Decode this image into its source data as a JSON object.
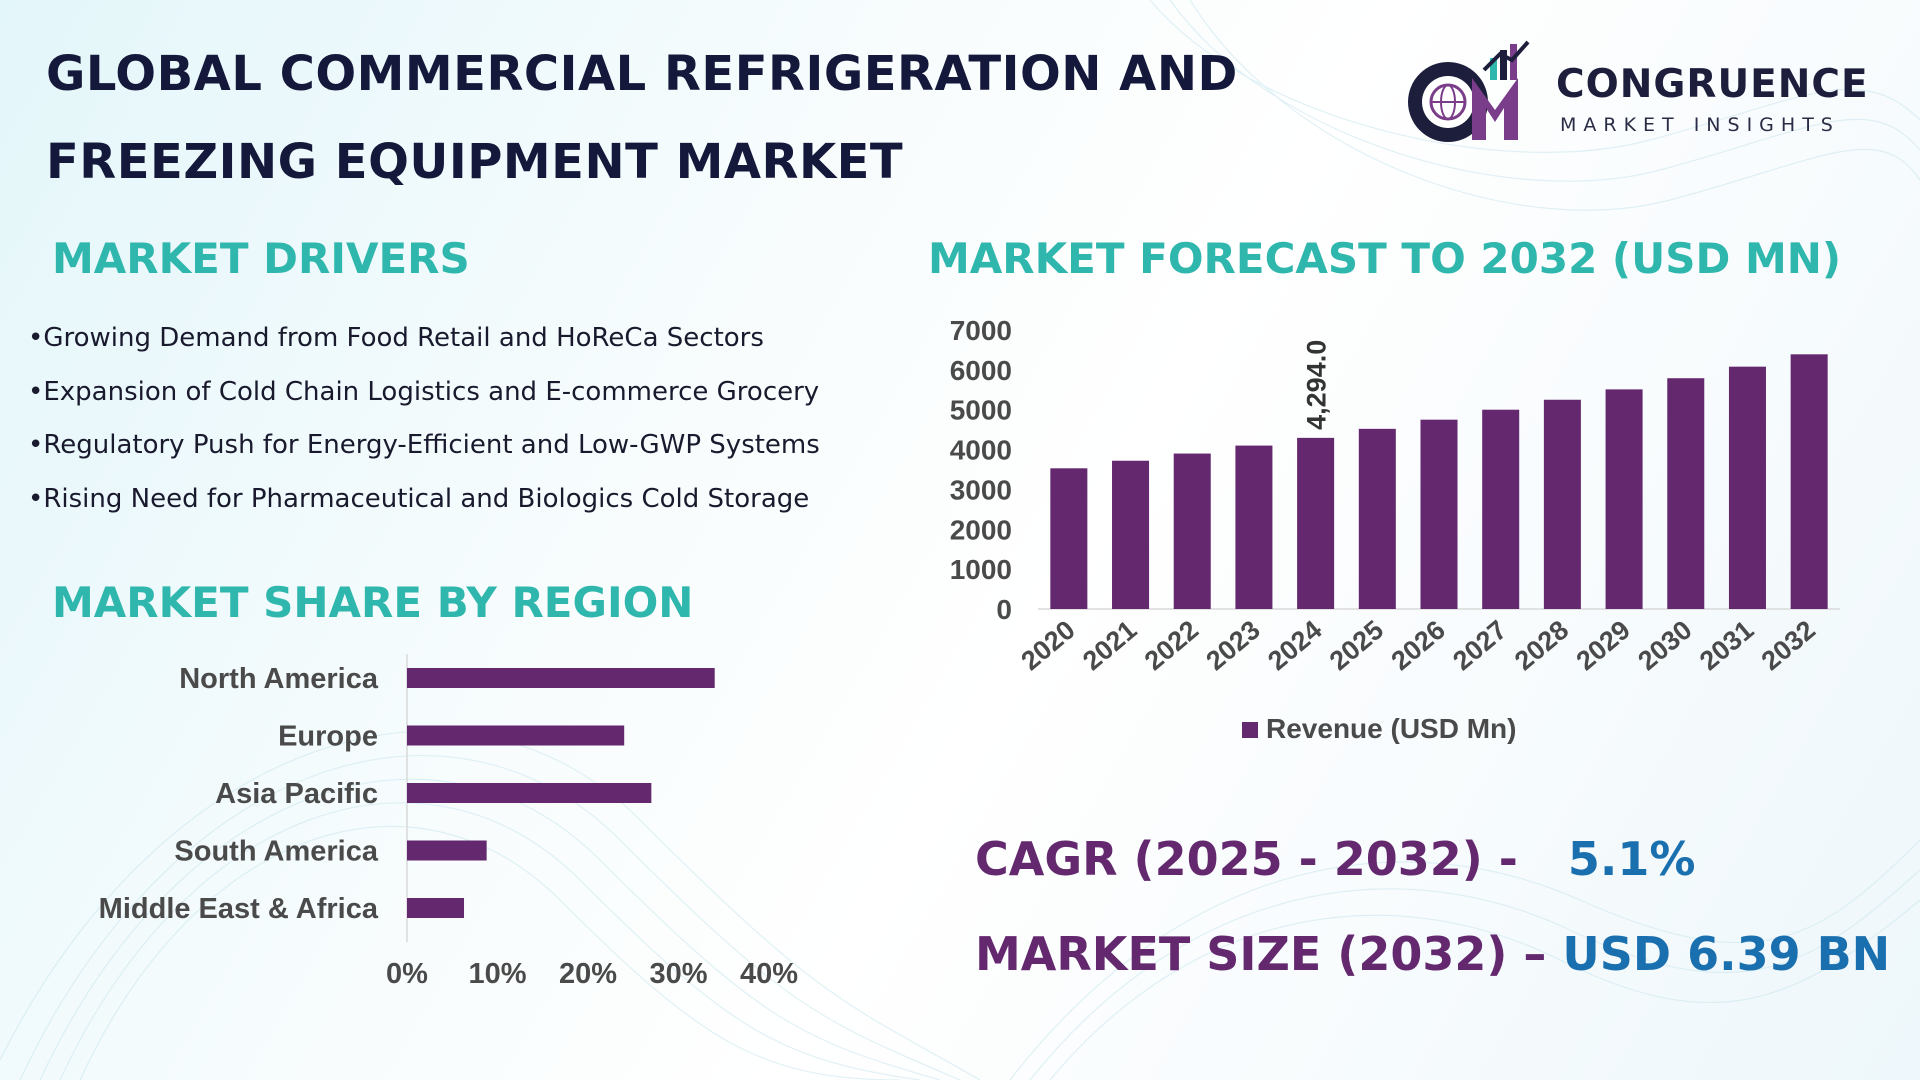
{
  "header": {
    "title_line1": "GLOBAL COMMERCIAL REFRIGERATION AND",
    "title_line2": "FREEZING EQUIPMENT MARKET"
  },
  "logo": {
    "mark_text": "CM",
    "brand": "CONGRUENCE",
    "tagline": "MARKET INSIGHTS"
  },
  "drivers": {
    "heading": "MARKET DRIVERS",
    "items": [
      "Growing Demand from Food Retail and HoReCa Sectors",
      "Expansion of Cold Chain Logistics and E-commerce Grocery",
      "Regulatory Push for Energy-Efficient and Low-GWP Systems",
      "Rising Need for Pharmaceutical and Biologics Cold Storage"
    ]
  },
  "forecast": {
    "heading": "MARKET FORECAST TO 2032 (USD MN)"
  },
  "region": {
    "heading": "MARKET SHARE BY REGION"
  },
  "kpis": {
    "cagr_label": "CAGR (2025 - 2032) -",
    "cagr_value": "5.1%",
    "size_label": "MARKET SIZE (2032) –",
    "size_value": "USD 6.39 BN"
  },
  "colors": {
    "bar": "#63286e",
    "heading": "#2fb6ad",
    "title": "#14183a",
    "kpi_label": "#63286e",
    "kpi_value": "#1a6fae",
    "axis_text": "#4a4a4a"
  },
  "chart_data": [
    {
      "type": "bar",
      "title": "MARKET FORECAST TO 2032 (USD MN)",
      "categories": [
        "2020",
        "2021",
        "2022",
        "2023",
        "2024",
        "2025",
        "2026",
        "2027",
        "2028",
        "2029",
        "2030",
        "2031",
        "2032"
      ],
      "series": [
        {
          "name": "Revenue (USD Mn)",
          "values": [
            3530,
            3720,
            3900,
            4100,
            4294.0,
            4520,
            4750,
            5000,
            5250,
            5510,
            5790,
            6080,
            6390
          ]
        }
      ],
      "data_labels": [
        {
          "category": "2024",
          "text": "4,294.0"
        }
      ],
      "y_ticks": [
        "0",
        "1000",
        "2000",
        "3000",
        "4000",
        "5000",
        "6000",
        "7000"
      ],
      "ylim": [
        0,
        7000
      ],
      "legend": "bottom",
      "grid": false
    },
    {
      "type": "bar",
      "orientation": "horizontal",
      "title": "MARKET SHARE BY REGION",
      "categories": [
        "North America",
        "Europe",
        "Asia Pacific",
        "South America",
        "Middle East & Africa"
      ],
      "values": [
        34,
        24,
        27,
        8.8,
        6.3
      ],
      "x_ticks": [
        "0%",
        "10%",
        "20%",
        "30%",
        "40%"
      ],
      "xlim": [
        0,
        40
      ],
      "unit": "%",
      "grid": false
    }
  ]
}
